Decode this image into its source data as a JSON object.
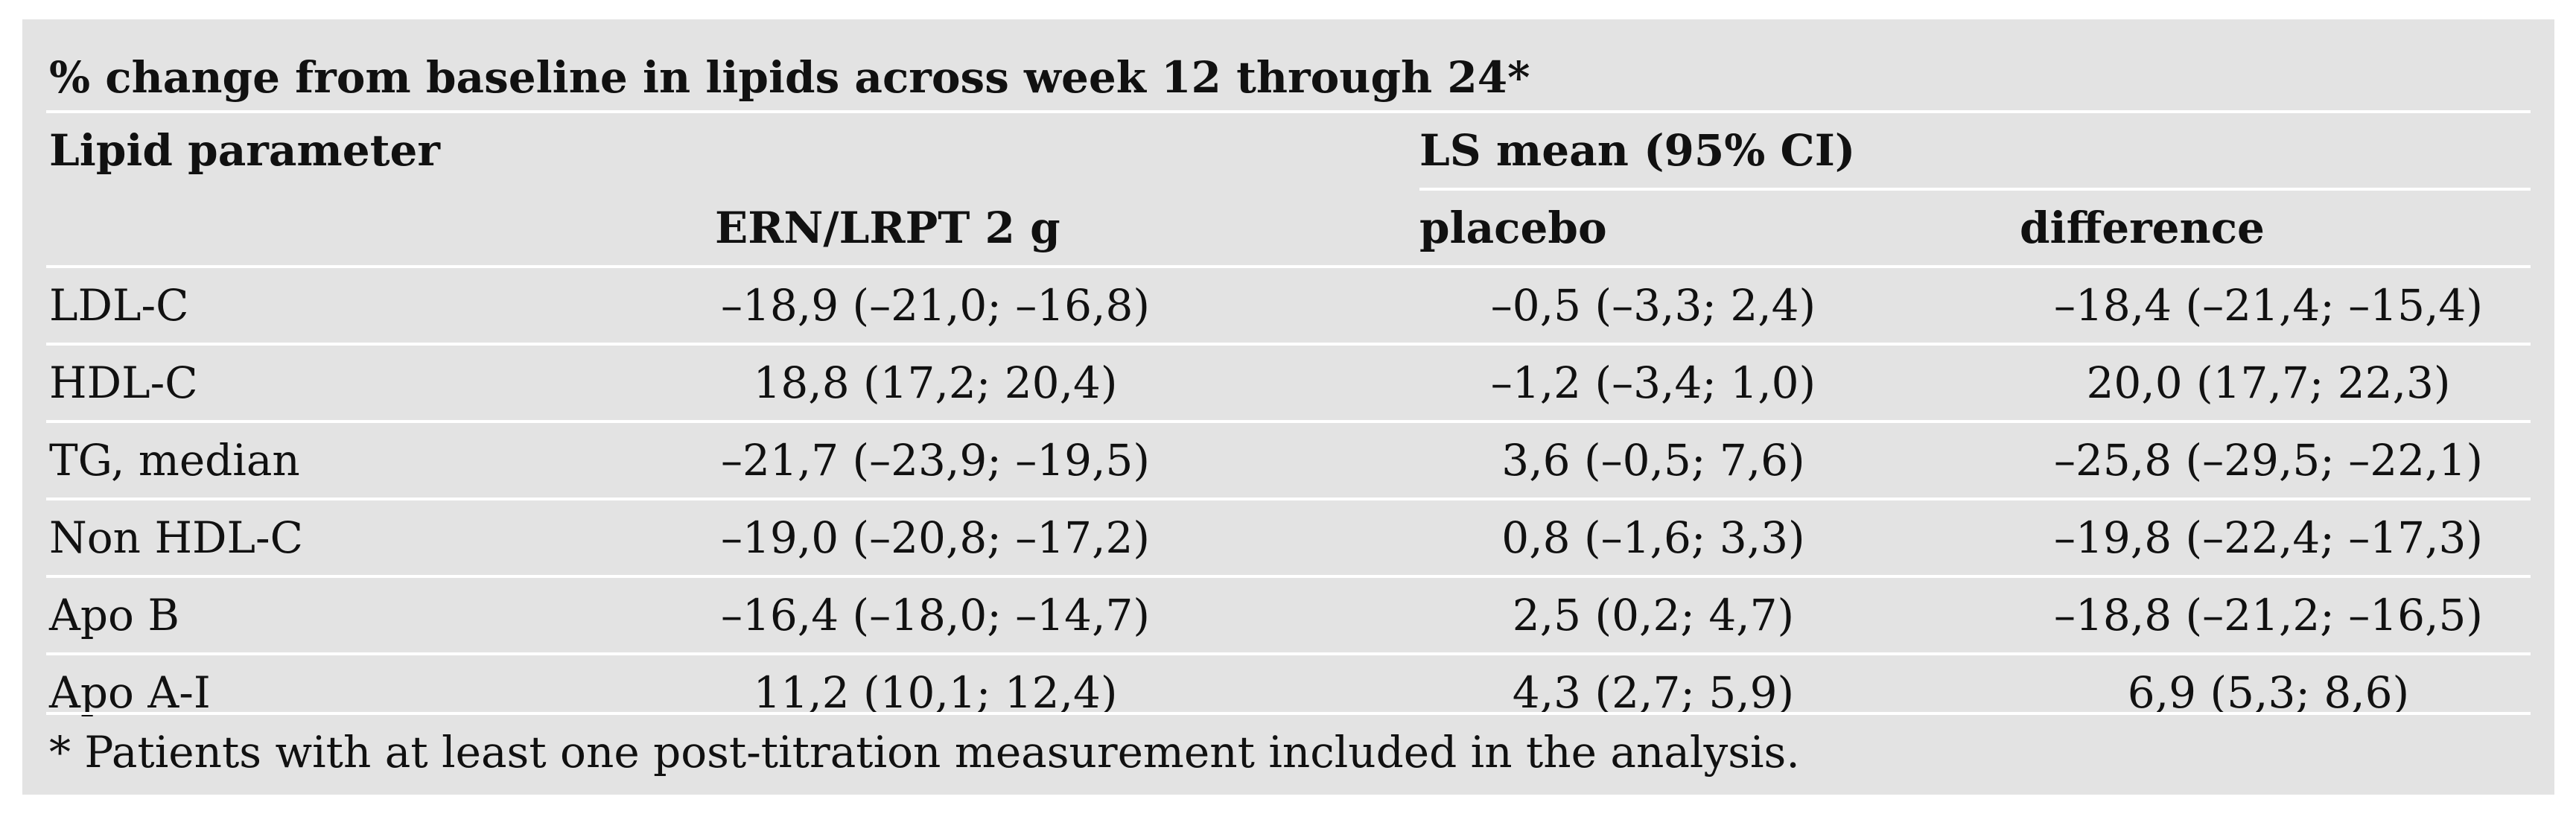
{
  "table": {
    "title": "% change from baseline in lipids across week 12 through 24*",
    "header": {
      "row1": {
        "param": "Lipid parameter",
        "group": "LS mean (95% CI)"
      },
      "row2": {
        "col1": "ERN/LRPT 2 g",
        "col2": "placebo",
        "col3": "difference"
      }
    },
    "rows": [
      {
        "param": "LDL-C",
        "ern": "–18,9 (–21,0; –16,8)",
        "placebo": "–0,5 (–3,3; 2,4)",
        "diff": "–18,4 (–21,4; –15,4)"
      },
      {
        "param": "HDL-C",
        "ern": "18,8 (17,2; 20,4)",
        "placebo": "–1,2 (–3,4; 1,0)",
        "diff": "20,0 (17,7; 22,3)"
      },
      {
        "param": "TG, median",
        "ern": "–21,7 (–23,9; –19,5)",
        "placebo": "3,6 (–0,5; 7,6)",
        "diff": "–25,8 (–29,5; –22,1)"
      },
      {
        "param": "Non HDL-C",
        "ern": "–19,0 (–20,8; –17,2)",
        "placebo": "0,8 (–1,6; 3,3)",
        "diff": "–19,8 (–22,4; –17,3)"
      },
      {
        "param": "Apo B",
        "ern": "–16,4 (–18,0; –14,7)",
        "placebo": "2,5 (0,2; 4,7)",
        "diff": "–18,8 (–21,2; –16,5)"
      },
      {
        "param": "Apo A-I",
        "ern": "11,2 (10,1; 12,4)",
        "placebo": "4,3 (2,7; 5,9)",
        "diff": "6,9 (5,3; 8,6)"
      }
    ],
    "footnote": "* Patients with at least one post-titration measurement included in the analysis."
  }
}
